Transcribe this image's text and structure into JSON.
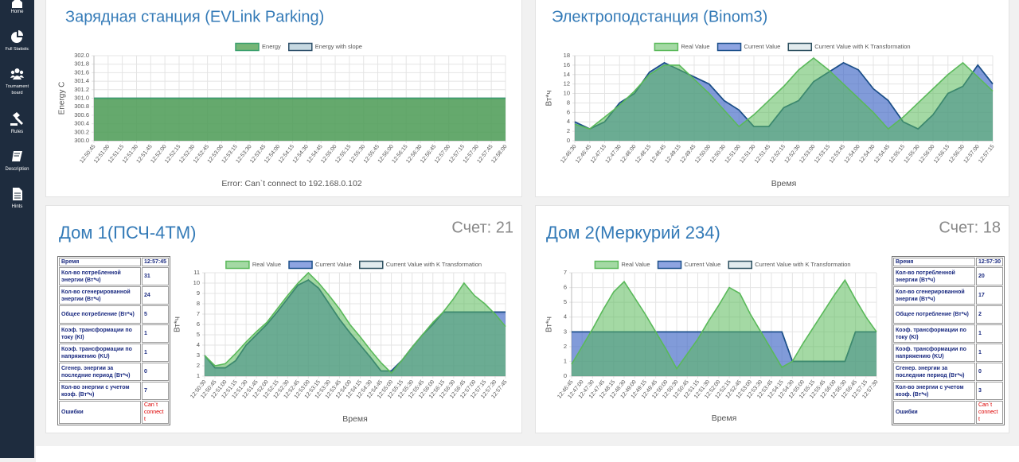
{
  "sidebar": [
    "Home",
    "Full Statistic",
    "Tournament board",
    "Rules",
    "Description",
    "Hints"
  ],
  "cards": [
    {
      "score": "Счет: 21",
      "table": [
        [
          "Время",
          "12:57:45"
        ],
        [
          "Кол-во потребленной энергии (Вт*ч)",
          "31"
        ],
        [
          "Кол-во сгенерированной энергии (Вт*ч)",
          "24"
        ],
        [
          "Общее потребление (Вт*ч)",
          "5"
        ],
        [
          "Коэф. трансформации по току (KI)",
          "1"
        ],
        [
          "Коэф. трансформации по напряжению (KU)",
          "1"
        ],
        [
          "Сгенер. энергии за последние период (Вт*ч)",
          "0"
        ],
        [
          "Кол-во энергии с учетом коэф. (Вт*ч)",
          "7"
        ],
        [
          "Ошибки",
          "Can`t connect t"
        ]
      ]
    },
    {
      "score": "Счет: 18",
      "table": [
        [
          "Время",
          "12:57:30"
        ],
        [
          "Кол-во потребленной энергии (Вт*ч)",
          "20"
        ],
        [
          "Кол-во сгенерированной энергии (Вт*ч)",
          "17"
        ],
        [
          "Общее потребление (Вт*ч)",
          "2"
        ],
        [
          "Коэф. трансформации по току (KI)",
          "1"
        ],
        [
          "Коэф. трансформации по напряжению (KU)",
          "1"
        ],
        [
          "Сгенер. энергии за последние период (Вт*ч)",
          "0"
        ],
        [
          "Кол-во энергии с учетом коэф. (Вт*ч)",
          "3"
        ],
        [
          "Ошибки",
          "Can`t connect t"
        ]
      ]
    }
  ],
  "chart_data": [
    {
      "type": "area",
      "title": "Зарядная станция (EVLink Parking)",
      "y_label": "Energy C",
      "annotation": "Error: Can`t connect to 192.168.0.102",
      "grid": true,
      "categories": [
        "12:50:45",
        "12:51:00",
        "12:51:15",
        "12:51:30",
        "12:51:45",
        "12:52:00",
        "12:52:15",
        "12:52:30",
        "12:52:45",
        "12:53:00",
        "12:53:15",
        "12:53:30",
        "12:53:45",
        "12:54:00",
        "12:54:15",
        "12:54:30",
        "12:54:45",
        "12:55:00",
        "12:55:15",
        "12:55:30",
        "12:55:45",
        "12:56:00",
        "12:56:15",
        "12:56:30",
        "12:56:45",
        "12:57:00",
        "12:57:15",
        "12:57:30",
        "12:57:45",
        "12:58:00"
      ],
      "ylim": [
        300,
        302
      ],
      "yticks": [
        {
          "value": 300,
          "label": "300.0"
        },
        300.2,
        300.4,
        300.6,
        300.8,
        {
          "value": 301,
          "label": "301.0"
        },
        301.2,
        301.4,
        301.6,
        301.8,
        {
          "value": 302,
          "label": "302.0"
        }
      ],
      "series": [
        {
          "name": "Energy",
          "color": "#3a9f6c",
          "fill": "rgba(60,150,60,0.7)",
          "values": [
            301,
            301,
            301,
            301,
            301,
            301,
            301,
            301,
            301,
            301,
            301,
            301,
            301,
            301,
            301,
            301,
            301,
            301,
            301,
            301,
            301,
            301,
            301,
            301,
            301,
            301,
            301,
            301,
            301,
            301
          ]
        },
        {
          "name": "Energy with slope",
          "color": "#2d4f6a",
          "fill": "rgba(160,190,205,0.6)",
          "values": [
            301,
            301,
            301,
            301,
            301,
            301,
            301,
            301,
            301,
            301,
            301,
            301,
            301,
            301,
            301,
            301,
            301,
            301,
            301,
            301,
            301,
            301,
            301,
            301,
            301,
            301,
            301,
            301,
            301,
            301
          ]
        }
      ]
    },
    {
      "type": "area",
      "title": "Электроподстанция (Binom3)",
      "y_label": "Вт*ч",
      "x_label": "Время",
      "grid": true,
      "categories": [
        "12:46:30",
        "12:46:45",
        "12:47:15",
        "12:47:30",
        "12:48:00",
        "12:48:15",
        "12:48:45",
        "12:49:15",
        "12:49:45",
        "12:50:00",
        "12:50:30",
        "12:51:00",
        "12:51:30",
        "12:51:45",
        "12:52:15",
        "12:52:30",
        "12:53:00",
        "12:53:15",
        "12:53:45",
        "12:54:00",
        "12:54:30",
        "12:54:45",
        "12:55:15",
        "12:55:30",
        "12:56:00",
        "12:56:15",
        "12:56:30",
        "12:57:00",
        "12:57:15"
      ],
      "ylim": [
        0,
        18
      ],
      "yticks": [
        0,
        2,
        4,
        6,
        8,
        10,
        12,
        14,
        16,
        18
      ],
      "series": [
        {
          "name": "Real Value",
          "color": "#5ab95a",
          "fill": "rgba(90,185,90,0.55)",
          "values": [
            3.5,
            2.5,
            5,
            7.5,
            10.5,
            14,
            16,
            16,
            13,
            10,
            6.5,
            3,
            5.5,
            8.5,
            11.5,
            15,
            17.5,
            15,
            12,
            9,
            6,
            2.5,
            5,
            8,
            11,
            14,
            16.5,
            13.5,
            10.5
          ]
        },
        {
          "name": "Current Value",
          "color": "#1b4f8a",
          "fill": "rgba(50,90,200,0.55)",
          "values": [
            4,
            2.5,
            4,
            8,
            10,
            14.5,
            16.5,
            15,
            13.5,
            12,
            8.5,
            6.5,
            3,
            3,
            7,
            8.5,
            12.5,
            14.5,
            16.5,
            15,
            11,
            8.5,
            4,
            2.5,
            5.5,
            10,
            11.5,
            16,
            12
          ]
        },
        {
          "name": "Current Value with K Transformation",
          "color": "#2d5060",
          "fill": "rgba(160,190,200,0.3)",
          "values": [
            4,
            2.5,
            4,
            8,
            10,
            14.5,
            16.5,
            15,
            13.5,
            12,
            8.5,
            6.5,
            3,
            3,
            7,
            8.5,
            12.5,
            14.5,
            16.5,
            15,
            11,
            8.5,
            4,
            2.5,
            5.5,
            10,
            11.5,
            16,
            12
          ]
        }
      ]
    },
    {
      "type": "area",
      "title": "Дом 1(ПСЧ-4ТМ)",
      "y_label": "Вт*ч",
      "x_label": "Время",
      "grid": true,
      "categories": [
        "12:50:30",
        "12:50:45",
        "12:51:00",
        "12:51:15",
        "12:51:30",
        "12:51:45",
        "12:52:00",
        "12:52:15",
        "12:52:30",
        "12:52:45",
        "12:53:00",
        "12:53:15",
        "12:53:30",
        "12:53:45",
        "12:54:00",
        "12:54:15",
        "12:54:30",
        "12:54:45",
        "12:55:00",
        "12:55:15",
        "12:55:30",
        "12:55:45",
        "12:56:00",
        "12:56:15",
        "12:56:30",
        "12:56:45",
        "12:57:00",
        "12:57:15",
        "12:57:30",
        "12:57:45"
      ],
      "ylim": [
        1,
        11
      ],
      "yticks": [
        1,
        2,
        3,
        4,
        5,
        6,
        7,
        8,
        9,
        10,
        11
      ],
      "series": [
        {
          "name": "Real Value",
          "color": "#5ab95a",
          "fill": "rgba(90,185,90,0.55)",
          "values": [
            3,
            2,
            2.2,
            3.2,
            4.3,
            5.3,
            6.2,
            7.5,
            8.8,
            10,
            11,
            10,
            8.8,
            7.5,
            6,
            4.8,
            3.5,
            2.3,
            1.3,
            2.5,
            3.8,
            5,
            6.2,
            7.2,
            8.5,
            10,
            8.8,
            8,
            7,
            5.8
          ]
        },
        {
          "name": "Current Value",
          "color": "#1b4f8a",
          "fill": "rgba(50,90,200,0.55)",
          "values": [
            3,
            1.8,
            1.8,
            2.5,
            4,
            5,
            6,
            7.2,
            8.5,
            9.8,
            10.3,
            9.5,
            8,
            6.5,
            5.2,
            4,
            2.8,
            1.5,
            1.5,
            2.5,
            3.8,
            5,
            6,
            7.2,
            7.2,
            7.2,
            7.2,
            7.2,
            7.2,
            7.2
          ]
        },
        {
          "name": "Current Value with K Transformation",
          "color": "#2d5060",
          "fill": "rgba(160,190,200,0.3)",
          "values": [
            3,
            1.8,
            1.8,
            2.5,
            4,
            5,
            6,
            7.2,
            8.5,
            9.8,
            10.3,
            9.5,
            8,
            6.5,
            5.2,
            4,
            2.8,
            1.5,
            1.5,
            2.5,
            3.8,
            5,
            6,
            7.2,
            7.2,
            7.2,
            7.2,
            7.2,
            7.2,
            7.2
          ]
        }
      ]
    },
    {
      "type": "area",
      "title": "Дом 2(Меркурий 234)",
      "y_label": "Вт*ч",
      "x_label": "Время",
      "grid": true,
      "categories": [
        "12:46:45",
        "12:47:00",
        "12:47:30",
        "12:47:45",
        "12:48:15",
        "12:48:30",
        "12:49:00",
        "12:49:15",
        "12:49:45",
        "12:50:00",
        "12:50:30",
        "12:50:45",
        "12:51:15",
        "12:51:30",
        "12:52:00",
        "12:52:15",
        "12:52:45",
        "12:53:00",
        "12:53:30",
        "12:53:45",
        "12:54:15",
        "12:54:30",
        "12:55:00",
        "12:55:15",
        "12:55:45",
        "12:56:00",
        "12:56:30",
        "12:56:45",
        "12:57:15",
        "12:57:30"
      ],
      "ylim": [
        0,
        7
      ],
      "yticks": [
        0,
        1,
        2,
        3,
        4,
        5,
        6,
        7
      ],
      "series": [
        {
          "name": "Real Value",
          "color": "#5ab95a",
          "fill": "rgba(90,185,90,0.55)",
          "values": [
            0.8,
            2,
            3.2,
            4.5,
            5.7,
            6.4,
            5.3,
            4.2,
            3,
            1.8,
            0.5,
            1.5,
            2.5,
            3.7,
            4.8,
            6,
            5.6,
            4.2,
            3,
            1.8,
            0.6,
            1,
            2.2,
            3.3,
            4.4,
            5.5,
            6.5,
            5.2,
            4,
            3
          ]
        },
        {
          "name": "Current Value",
          "color": "#1b4f8a",
          "fill": "rgba(50,90,200,0.55)",
          "values": [
            3,
            3,
            3,
            3,
            3,
            3,
            3,
            3,
            3,
            3,
            3,
            3,
            3,
            3,
            3,
            3,
            3,
            3,
            3,
            3,
            3,
            1,
            1,
            1,
            1,
            1,
            1,
            3,
            3,
            3
          ]
        },
        {
          "name": "Current Value with K Transformation",
          "color": "#2d5060",
          "fill": "rgba(160,190,200,0.3)",
          "values": [
            3,
            3,
            3,
            3,
            3,
            3,
            3,
            3,
            3,
            3,
            3,
            3,
            3,
            3,
            3,
            3,
            3,
            3,
            3,
            3,
            3,
            1,
            1,
            1,
            1,
            1,
            1,
            3,
            3,
            3
          ]
        }
      ]
    }
  ]
}
